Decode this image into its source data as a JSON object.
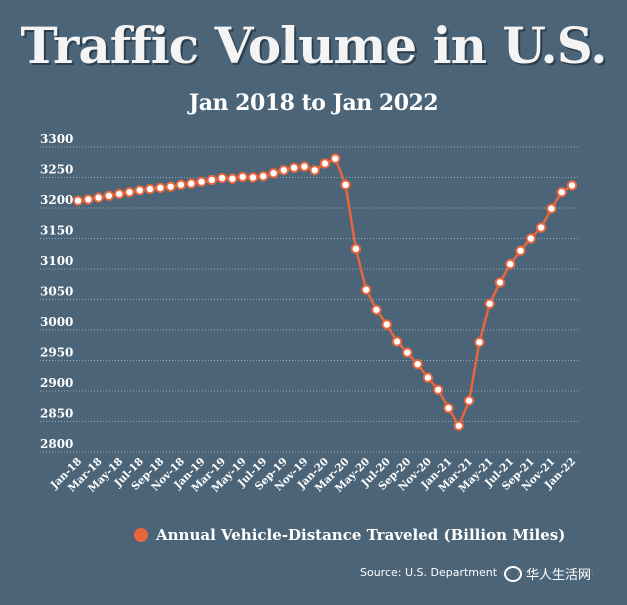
{
  "title": "Traffic Volume in U.S.",
  "subtitle": "Jan 2018 to Jan 2022",
  "source": "Source: U.S. Department of Transportation",
  "watermark": "华人生活网",
  "colors": {
    "background": "#4b6478",
    "series": "#e8663d",
    "marker_fill": "#ffffff",
    "grid": "#9aacb9"
  },
  "chart_data": {
    "type": "line",
    "title": "Traffic Volume in U.S.",
    "subtitle": "Jan 2018 to Jan 2022",
    "xlabel": "",
    "ylabel": "",
    "ylim": [
      2800,
      3300
    ],
    "yticks": [
      2800,
      2850,
      2900,
      2950,
      3000,
      3050,
      3100,
      3150,
      3200,
      3250,
      3300
    ],
    "xtick_labels": [
      "Jan-18",
      "Mar-18",
      "May-18",
      "Jul-18",
      "Sep-18",
      "Nov-18",
      "Jan-19",
      "Mar-19",
      "May-19",
      "Jul-19",
      "Sep-19",
      "Nov-19",
      "Jan-20",
      "Mar-20",
      "May-20",
      "Jul-20",
      "Sep-20",
      "Nov-20",
      "Jan-21",
      "Mar-21",
      "May-21",
      "Jul-21",
      "Sep-21",
      "Nov-21",
      "Jan-22"
    ],
    "grid": true,
    "legend": "bottom",
    "series": [
      {
        "name": "Annual Vehicle-Distance Traveled (Billion Miles)",
        "values": [
          3212,
          3214,
          3217,
          3220,
          3223,
          3226,
          3229,
          3231,
          3233,
          3235,
          3238,
          3240,
          3243,
          3246,
          3249,
          3248,
          3251,
          3250,
          3252,
          3257,
          3262,
          3266,
          3268,
          3262,
          3273,
          3281,
          3238,
          3133,
          3066,
          3033,
          3009,
          2981,
          2963,
          2944,
          2922,
          2902,
          2872,
          2843,
          2884,
          2980,
          3043,
          3078,
          3108,
          3130,
          3150,
          3168,
          3199,
          3226,
          3237
        ]
      }
    ]
  }
}
